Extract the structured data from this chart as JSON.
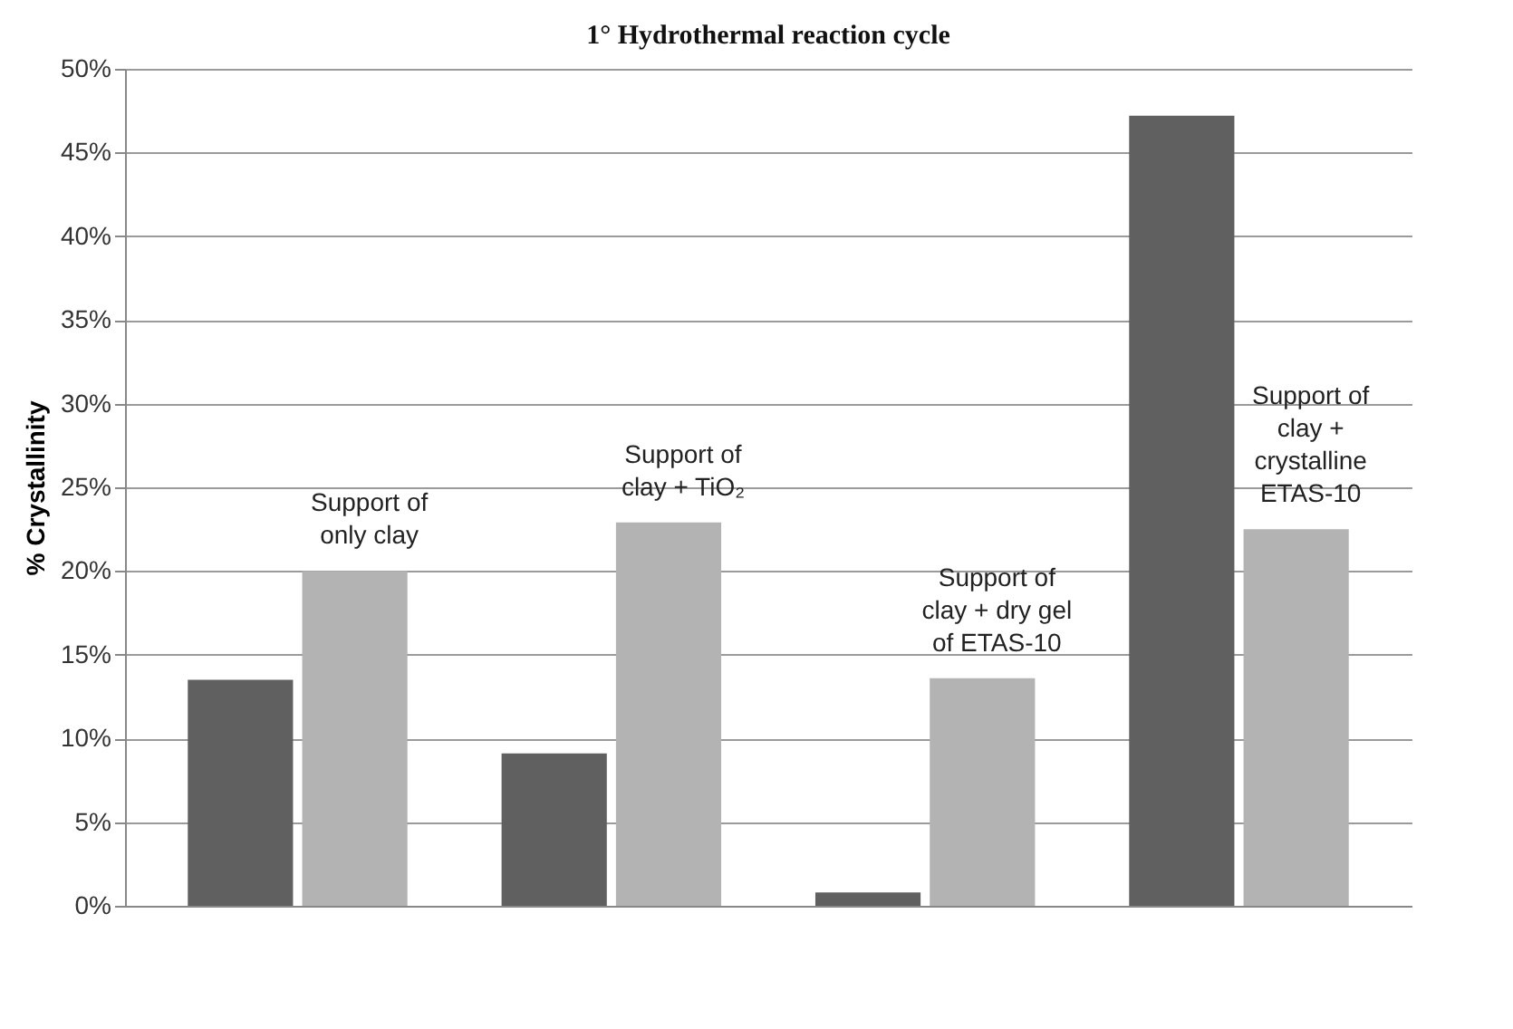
{
  "chart_data": {
    "type": "bar",
    "title": "1° Hydrothermal reaction cycle",
    "ylabel": "% Crystallinity",
    "categories": [
      "Support of only clay",
      "Support of clay + TiO₂",
      "Support of clay + dry gel of ETAS-10",
      "Support of clay + crystalline ETAS-10"
    ],
    "series": [
      {
        "color": "#606060",
        "values": [
          13.5,
          9.1,
          0.8,
          47.2
        ]
      },
      {
        "color": "#b3b3b3",
        "values": [
          20,
          22.9,
          13.6,
          22.5
        ]
      }
    ],
    "ylim": [
      0,
      50
    ],
    "yticks": [
      {
        "value": 0,
        "label": "0%"
      },
      {
        "value": 5,
        "label": "5%"
      },
      {
        "value": 10,
        "label": "10%"
      },
      {
        "value": 15,
        "label": "15%"
      },
      {
        "value": 20,
        "label": "20%"
      },
      {
        "value": 25,
        "label": "25%"
      },
      {
        "value": 30,
        "label": "30%"
      },
      {
        "value": 35,
        "label": "35%"
      },
      {
        "value": 40,
        "label": "40%"
      },
      {
        "value": 45,
        "label": "45%"
      },
      {
        "value": 50,
        "label": "50%"
      }
    ],
    "grid": "y",
    "tick_labels": "y"
  }
}
